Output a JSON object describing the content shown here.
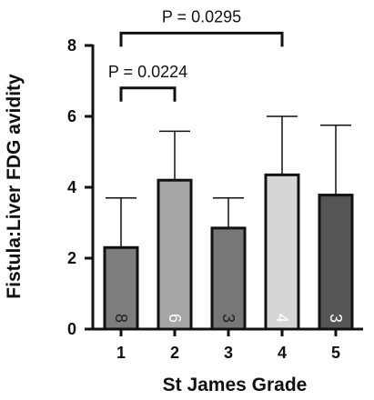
{
  "chart_data": {
    "type": "bar",
    "xlabel": "St James Grade",
    "ylabel": "Fistula:Liver FDG avidity",
    "categories": [
      "1",
      "2",
      "3",
      "4",
      "5"
    ],
    "values": [
      2.3,
      4.2,
      2.85,
      4.35,
      3.78
    ],
    "error_upper": [
      3.7,
      5.58,
      3.7,
      6.0,
      5.75
    ],
    "n_labels": [
      "8",
      "6",
      "3",
      "4",
      "3"
    ],
    "bar_colors": [
      "#7d7d7d",
      "#a6a6a6",
      "#777777",
      "#d6d6d6",
      "#555555"
    ],
    "n_label_colors": [
      "#222222",
      "#ffffff",
      "#222222",
      "#ffffff",
      "#ffffff"
    ],
    "ylim": [
      0,
      8
    ],
    "yticks": [
      "0",
      "2",
      "4",
      "6",
      "8"
    ],
    "grid": false,
    "annotations": [
      {
        "text": "P = 0.0224",
        "from": "1",
        "to": "2",
        "y": 6.8
      },
      {
        "text": "P = 0.0295",
        "from": "1",
        "to": "4",
        "y": 8.35
      }
    ]
  }
}
